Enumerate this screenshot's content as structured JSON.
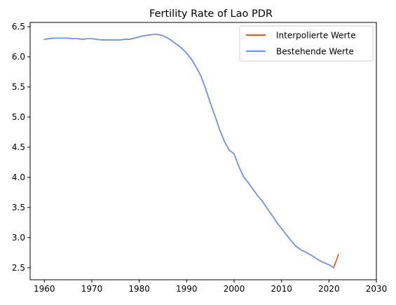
{
  "chart_data": {
    "type": "line",
    "title": "Fertility Rate of Lao PDR",
    "xlabel": "",
    "ylabel": "",
    "xlim": [
      1957.0,
      2030
    ],
    "ylim": [
      2.3,
      6.57
    ],
    "xticks": [
      1960,
      1970,
      1980,
      1990,
      2000,
      2010,
      2020,
      2030
    ],
    "yticks": [
      2.5,
      3.0,
      3.5,
      4.0,
      4.5,
      5.0,
      5.5,
      6.0,
      6.5
    ],
    "grid": false,
    "legend_position": "top-right",
    "series": [
      {
        "name": "Interpolierte Werte",
        "color": "#e8541c",
        "x": [
          1960,
          1961,
          1962,
          1963,
          1964,
          1965,
          1966,
          1967,
          1968,
          1969,
          1970,
          1971,
          1972,
          1973,
          1974,
          1975,
          1976,
          1977,
          1978,
          1979,
          1980,
          1981,
          1982,
          1983,
          1984,
          1985,
          1986,
          1987,
          1988,
          1989,
          1990,
          1991,
          1992,
          1993,
          1994,
          1995,
          1996,
          1997,
          1998,
          1999,
          2000,
          2001,
          2002,
          2003,
          2004,
          2005,
          2006,
          2007,
          2008,
          2009,
          2010,
          2011,
          2012,
          2013,
          2014,
          2015,
          2016,
          2017,
          2018,
          2019,
          2020,
          2021,
          2022
        ],
        "y": [
          6.29,
          6.3,
          6.31,
          6.31,
          6.31,
          6.31,
          6.3,
          6.3,
          6.29,
          6.3,
          6.3,
          6.29,
          6.28,
          6.28,
          6.28,
          6.28,
          6.28,
          6.29,
          6.29,
          6.31,
          6.33,
          6.35,
          6.36,
          6.37,
          6.37,
          6.35,
          6.31,
          6.26,
          6.2,
          6.14,
          6.06,
          5.96,
          5.83,
          5.68,
          5.47,
          5.23,
          5.01,
          4.78,
          4.59,
          4.45,
          4.39,
          4.18,
          4.01,
          3.91,
          3.8,
          3.69,
          3.6,
          3.48,
          3.37,
          3.25,
          3.15,
          3.05,
          2.95,
          2.86,
          2.8,
          2.76,
          2.72,
          2.67,
          2.62,
          2.58,
          2.55,
          2.5,
          2.72
        ]
      },
      {
        "name": "Bestehende Werte",
        "color": "#6495ed",
        "x": [
          1960,
          1961,
          1962,
          1963,
          1964,
          1965,
          1966,
          1967,
          1968,
          1969,
          1970,
          1971,
          1972,
          1973,
          1974,
          1975,
          1976,
          1977,
          1978,
          1979,
          1980,
          1981,
          1982,
          1983,
          1984,
          1985,
          1986,
          1987,
          1988,
          1989,
          1990,
          1991,
          1992,
          1993,
          1994,
          1995,
          1996,
          1997,
          1998,
          1999,
          2000,
          2001,
          2002,
          2003,
          2004,
          2005,
          2006,
          2007,
          2008,
          2009,
          2010,
          2011,
          2012,
          2013,
          2014,
          2015,
          2016,
          2017,
          2018,
          2019,
          2020,
          2021
        ],
        "y": [
          6.29,
          6.3,
          6.31,
          6.31,
          6.31,
          6.31,
          6.3,
          6.3,
          6.29,
          6.3,
          6.3,
          6.29,
          6.28,
          6.28,
          6.28,
          6.28,
          6.28,
          6.29,
          6.29,
          6.31,
          6.33,
          6.35,
          6.36,
          6.37,
          6.37,
          6.35,
          6.31,
          6.26,
          6.2,
          6.14,
          6.06,
          5.96,
          5.83,
          5.68,
          5.47,
          5.23,
          5.01,
          4.78,
          4.59,
          4.45,
          4.39,
          4.18,
          4.01,
          3.91,
          3.8,
          3.69,
          3.6,
          3.48,
          3.37,
          3.25,
          3.15,
          3.05,
          2.95,
          2.86,
          2.8,
          2.76,
          2.72,
          2.67,
          2.62,
          2.58,
          2.55,
          2.5
        ]
      }
    ]
  }
}
